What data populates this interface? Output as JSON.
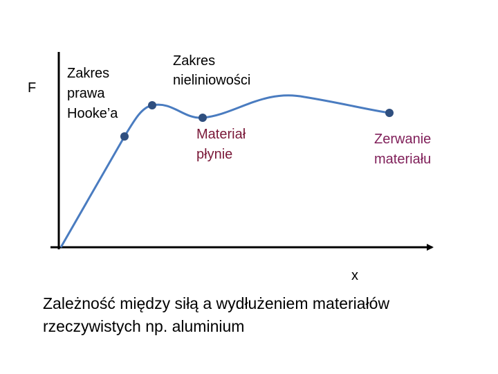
{
  "axes": {
    "y_label": "F",
    "x_label": "x"
  },
  "annotations": {
    "hooke": [
      "Zakres",
      "prawa",
      "Hooke’a"
    ],
    "nonlinear": [
      "Zakres",
      "nieliniowości"
    ],
    "yield": [
      "Materiał",
      "płynie"
    ],
    "fracture": [
      "Zerwanie",
      "materiału"
    ]
  },
  "caption": [
    "Zależność między siłą a wydłużeniem materiałów",
    "rzeczywistych np. aluminium"
  ]
}
